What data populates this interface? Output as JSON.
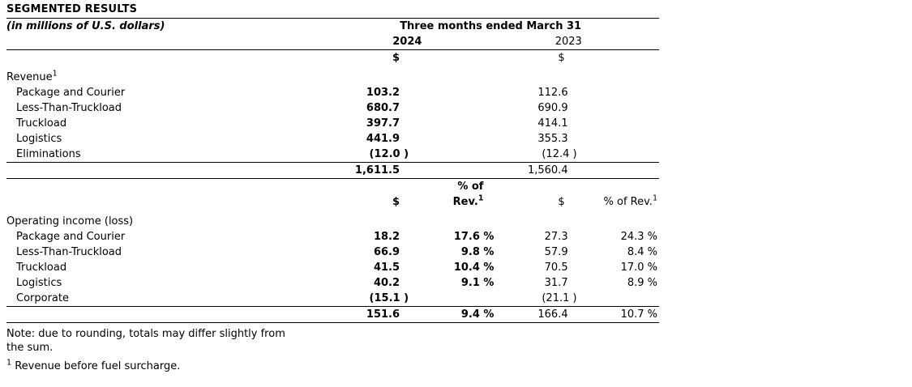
{
  "title": "SEGMENTED RESULTS",
  "subtitle": "(in millions of U.S. dollars)",
  "header": {
    "period": "Three months ended March 31",
    "year_2024": "2024",
    "year_2023": "2023",
    "dollar_sign": "$",
    "pct_of_line1": "% of",
    "pct_of_line2_base": "Rev.",
    "pct_of_2023_base": "% of Rev.",
    "footnote_marker": "1"
  },
  "revenue": {
    "section_label": "Revenue",
    "section_footnote": "1",
    "rows": [
      {
        "label": "Package and Courier",
        "y2024": "103.2",
        "y2023": "112.6"
      },
      {
        "label": "Less-Than-Truckload",
        "y2024": "680.7",
        "y2023": "690.9"
      },
      {
        "label": "Truckload",
        "y2024": "397.7",
        "y2023": "414.1"
      },
      {
        "label": "Logistics",
        "y2024": "441.9",
        "y2023": "355.3"
      },
      {
        "label": "Eliminations",
        "y2024": "(12.0 )",
        "y2023": "(12.4 )"
      }
    ],
    "total": {
      "y2024": "1,611.5",
      "y2023": "1,560.4"
    }
  },
  "operating_income": {
    "section_label": "Operating income (loss)",
    "rows": [
      {
        "label": "Package and Courier",
        "y2024": "18.2",
        "y2024_pct": "17.6 %",
        "y2023": "27.3",
        "y2023_pct": "24.3 %"
      },
      {
        "label": "Less-Than-Truckload",
        "y2024": "66.9",
        "y2024_pct": "9.8 %",
        "y2023": "57.9",
        "y2023_pct": "8.4 %"
      },
      {
        "label": "Truckload",
        "y2024": "41.5",
        "y2024_pct": "10.4 %",
        "y2023": "70.5",
        "y2023_pct": "17.0 %"
      },
      {
        "label": "Logistics",
        "y2024": "40.2",
        "y2024_pct": "9.1 %",
        "y2023": "31.7",
        "y2023_pct": "8.9 %"
      },
      {
        "label": "Corporate",
        "y2024": "(15.1 )",
        "y2024_pct": "",
        "y2023": "(21.1 )",
        "y2023_pct": ""
      }
    ],
    "total": {
      "y2024": "151.6",
      "y2024_pct": "9.4 %",
      "y2023": "166.4",
      "y2023_pct": "10.7 %"
    }
  },
  "notes": {
    "rounding_lines": [
      "Note: due to rounding, totals may differ slightly from",
      "the sum."
    ],
    "footnote_marker": "1",
    "footnote_text": "Revenue before fuel surcharge."
  }
}
